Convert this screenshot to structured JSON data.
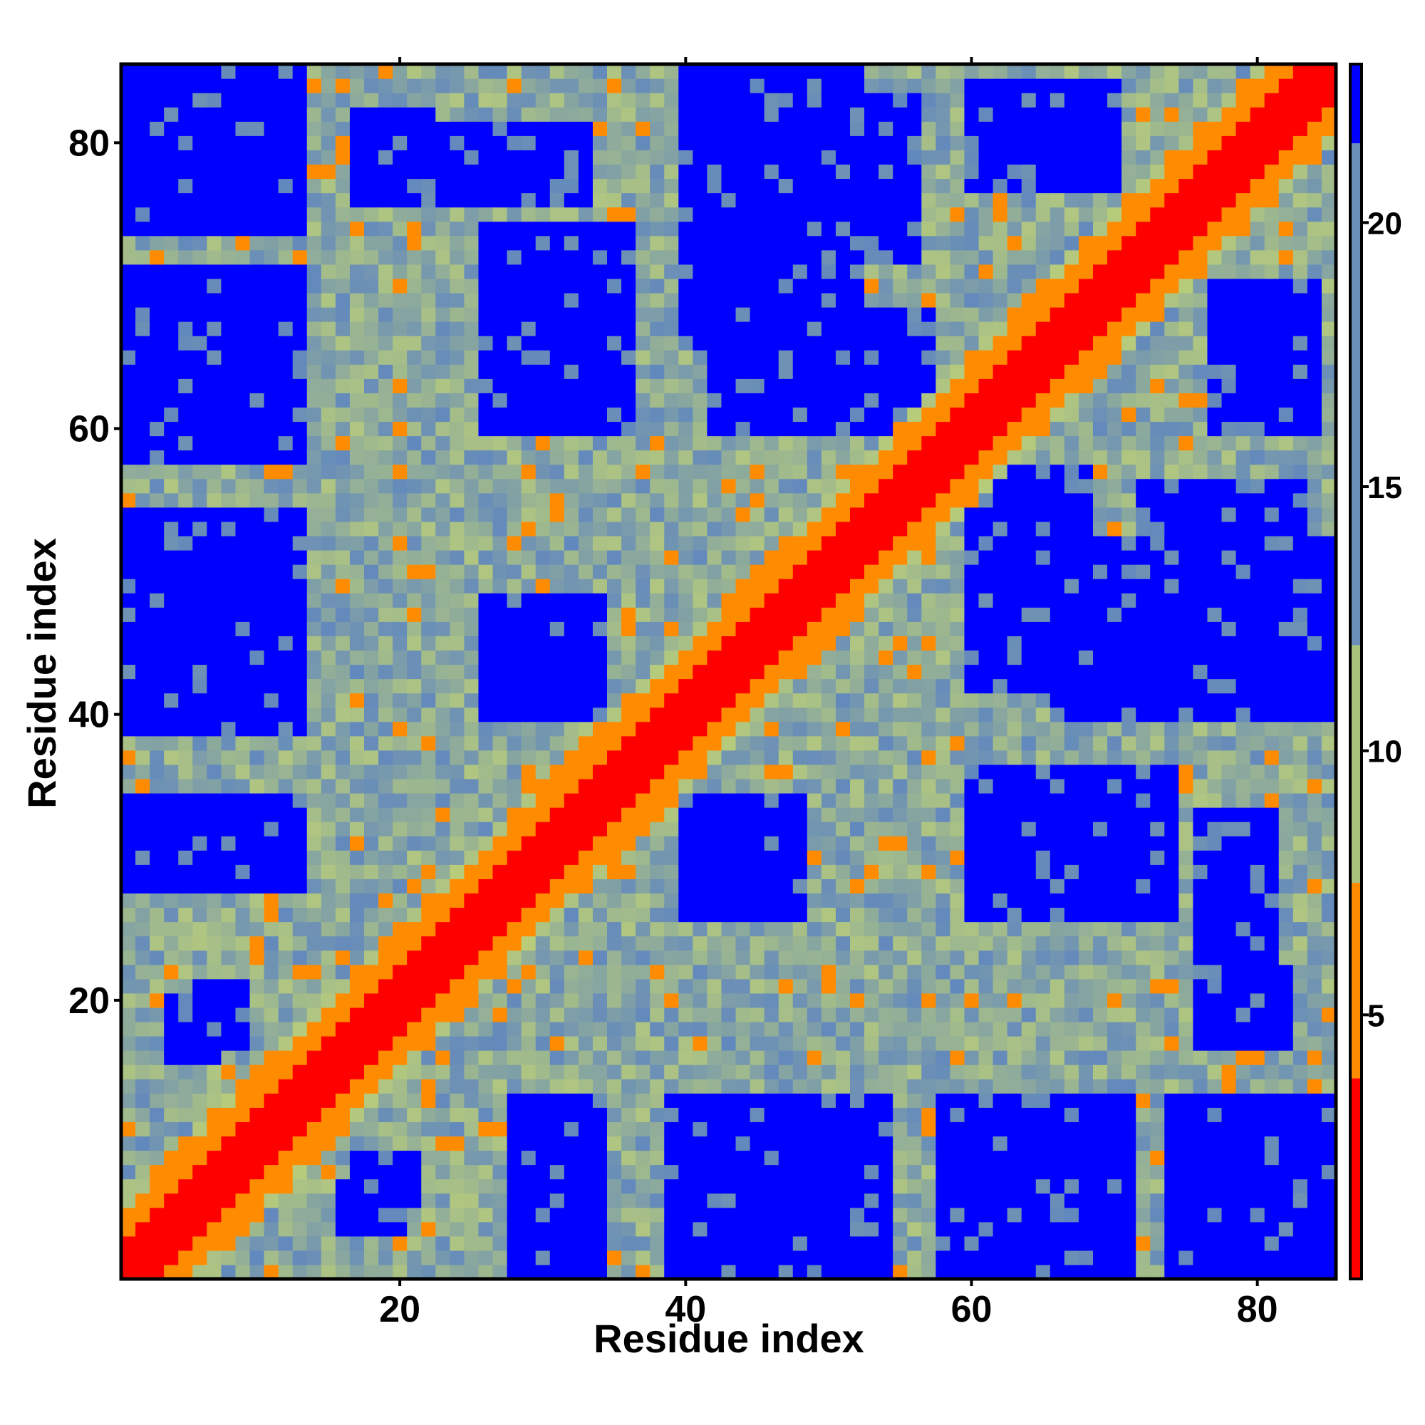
{
  "chart_data": {
    "type": "heatmap",
    "title": "",
    "xlabel": "Residue index",
    "ylabel": "Residue index",
    "n_residues": 85,
    "xlim": [
      1,
      85
    ],
    "ylim": [
      1,
      85
    ],
    "x_ticks": [
      20,
      40,
      60,
      80
    ],
    "y_ticks": [
      20,
      40,
      60,
      80
    ],
    "colorbar": {
      "ticks": [
        5,
        10,
        15,
        20
      ],
      "range": [
        0,
        23
      ],
      "bands": [
        {
          "from": 0,
          "to": 3.8,
          "color": "#ff0000"
        },
        {
          "from": 3.8,
          "to": 7.5,
          "color": "#ff8c00"
        },
        {
          "from": 7.5,
          "to": 12,
          "color": "#a8c47c"
        },
        {
          "from": 12,
          "to": 21.5,
          "color": "#6a8fb8"
        },
        {
          "from": 21.5,
          "to": 23,
          "color": "#0000ff"
        }
      ]
    },
    "matrix_description": "Symmetric residue-residue distance map (Angstrom). Near-diagonal |i-j|<=2 is red; |i-j| 3-5 orange; far contacts green/blue; distant blocks saturate blue.",
    "blue_blocks": [
      {
        "i": [
          1,
          13
        ],
        "j": [
          39,
          54
        ]
      },
      {
        "i": [
          1,
          13
        ],
        "j": [
          58,
          71
        ]
      },
      {
        "i": [
          4,
          7
        ],
        "j": [
          16,
          20
        ]
      },
      {
        "i": [
          1,
          13
        ],
        "j": [
          74,
          85
        ]
      },
      {
        "i": [
          27,
          32
        ],
        "j": [
          40,
          48
        ]
      },
      {
        "i": [
          27,
          32
        ],
        "j": [
          60,
          74
        ]
      },
      {
        "i": [
          28,
          34
        ],
        "j": [
          1,
          13
        ]
      },
      {
        "i": [
          40,
          52
        ],
        "j": [
          1,
          13
        ]
      },
      {
        "i": [
          40,
          48
        ],
        "j": [
          26,
          34
        ]
      },
      {
        "i": [
          40,
          52
        ],
        "j": [
          66,
          85
        ]
      },
      {
        "i": [
          60,
          70
        ],
        "j": [
          1,
          13
        ]
      },
      {
        "i": [
          60,
          68
        ],
        "j": [
          26,
          36
        ]
      },
      {
        "i": [
          60,
          68
        ],
        "j": [
          42,
          57
        ]
      },
      {
        "i": [
          60,
          70
        ],
        "j": [
          77,
          84
        ]
      },
      {
        "i": [
          72,
          83
        ],
        "j": [
          40,
          56
        ]
      },
      {
        "i": [
          76,
          81
        ],
        "j": [
          17,
          33
        ]
      },
      {
        "i": [
          17,
          22
        ],
        "j": [
          78,
          82
        ]
      },
      {
        "i": [
          26,
          36
        ],
        "j": [
          60,
          74
        ]
      },
      {
        "i": [
          17,
          21
        ],
        "j": [
          6,
          9
        ]
      },
      {
        "i": [
          6,
          8
        ],
        "j": [
          17,
          20
        ]
      }
    ]
  }
}
